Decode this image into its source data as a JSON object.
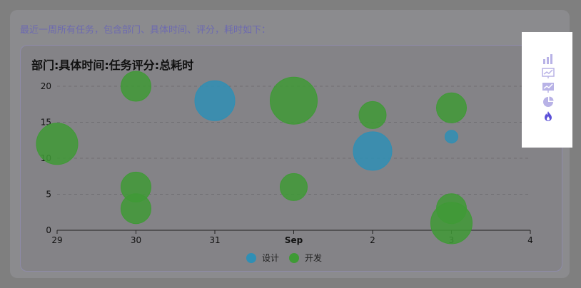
{
  "intro_text": "最近一周所有任务，包含部门、具体时间、评分，耗时如下：",
  "toolbar": {
    "icons": [
      "bar-chart-icon",
      "line-chart-icon",
      "area-chart-icon",
      "pie-chart-icon",
      "fire-icon"
    ],
    "colors": {
      "default": "#b8b2e6",
      "active": "#5b50d8"
    }
  },
  "chart_data": {
    "type": "scatter",
    "title": "部门:具体时间:任务评分:总耗时",
    "x_ticks": [
      "29",
      "30",
      "31",
      "Sep",
      "2",
      "3",
      "4"
    ],
    "y_ticks": [
      "0",
      "5",
      "10",
      "15",
      "20"
    ],
    "ylim": [
      0,
      20
    ],
    "grid": true,
    "legend_position": "bottom",
    "series": [
      {
        "name": "设计",
        "color": "#2f8fb5",
        "points": [
          {
            "x": "2022-08-31",
            "y": 18,
            "size": 28
          },
          {
            "x": "2022-09-02",
            "y": 11,
            "size": 27
          },
          {
            "x": "2022-09-03",
            "y": 13,
            "size": 9
          }
        ]
      },
      {
        "name": "开发",
        "color": "#3f9a36",
        "points": [
          {
            "x": "2022-08-29",
            "y": 12,
            "size": 29
          },
          {
            "x": "2022-08-30",
            "y": 20,
            "size": 21
          },
          {
            "x": "2022-08-30",
            "y": 6,
            "size": 21
          },
          {
            "x": "2022-08-30",
            "y": 3,
            "size": 21
          },
          {
            "x": "2022-09-01",
            "y": 18,
            "size": 33
          },
          {
            "x": "2022-09-01",
            "y": 6,
            "size": 19
          },
          {
            "x": "2022-09-02",
            "y": 16,
            "size": 19
          },
          {
            "x": "2022-09-03",
            "y": 17,
            "size": 21
          },
          {
            "x": "2022-09-03",
            "y": 3,
            "size": 21
          },
          {
            "x": "2022-09-03",
            "y": 1,
            "size": 29
          }
        ]
      }
    ]
  }
}
